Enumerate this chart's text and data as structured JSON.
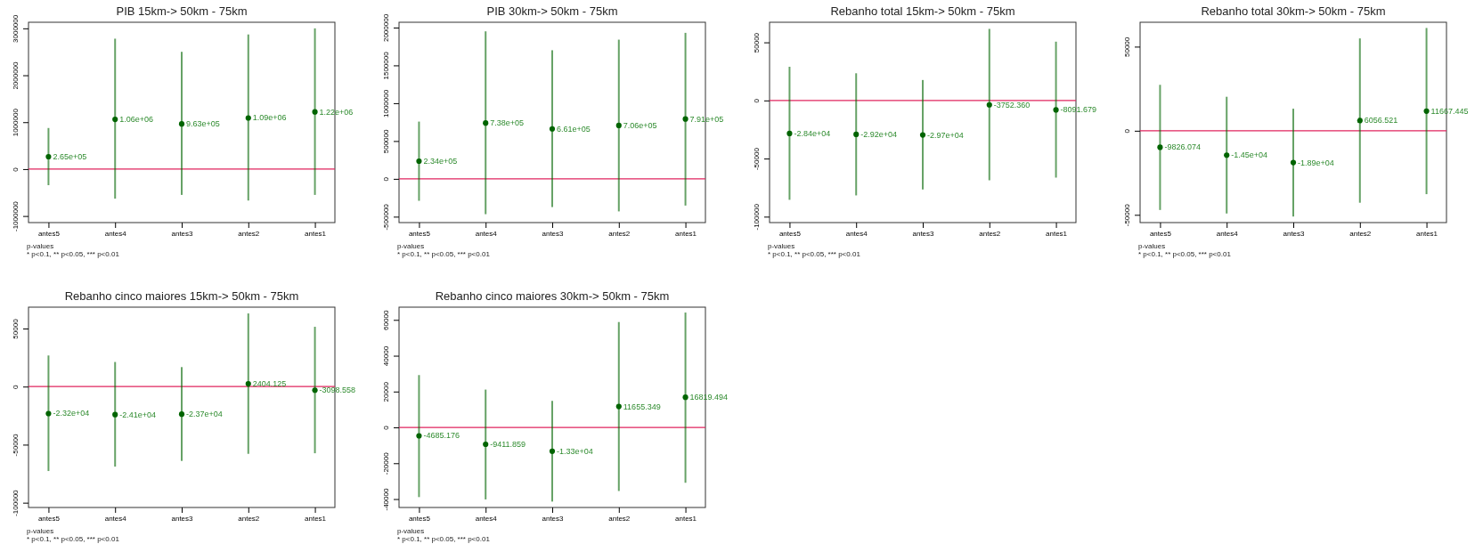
{
  "chart_data": [
    {
      "type": "scatter",
      "title": "PIB 15km-> 50km - 75km",
      "categories": [
        "antes5",
        "antes4",
        "antes3",
        "antes2",
        "antes1"
      ],
      "ylim": [
        -1140000,
        3130000
      ],
      "yticks": [
        -1000000,
        0,
        1000000,
        2000000,
        3000000
      ],
      "marker": "circle",
      "grid": false,
      "series": [
        {
          "color": "#006400",
          "values": [
            265000,
            1060000,
            963000,
            1090000,
            1220000
          ],
          "errors": [
            [
              -343000,
              876000
            ],
            [
              -630000,
              2780000
            ],
            [
              -550000,
              2500000
            ],
            [
              -670000,
              2870000
            ],
            [
              -550000,
              3000000
            ]
          ],
          "value_labels": [
            "2.65e+05",
            "1.06e+06",
            "9.63e+05",
            "1.09e+06",
            "1.22e+06"
          ]
        }
      ],
      "ref_lines": [
        {
          "axis": "y",
          "value": 0,
          "color": "#e0245e"
        }
      ],
      "annotations": [
        "p-values",
        "* p<0.1, ** p<0.05, *** p<0.01"
      ]
    },
    {
      "type": "scatter",
      "title": "PIB 30km-> 50km - 75km",
      "categories": [
        "antes5",
        "antes4",
        "antes3",
        "antes2",
        "antes1"
      ],
      "ylim": [
        -578000,
        2070000
      ],
      "yticks": [
        -500000,
        0,
        500000,
        1000000,
        1500000,
        2000000
      ],
      "marker": "circle",
      "grid": false,
      "series": [
        {
          "color": "#006400",
          "values": [
            234000,
            738000,
            661000,
            706000,
            791000
          ],
          "errors": [
            [
              -290000,
              757000
            ],
            [
              -467000,
              1950000
            ],
            [
              -373000,
              1700000
            ],
            [
              -430000,
              1840000
            ],
            [
              -353000,
              1930000
            ]
          ],
          "value_labels": [
            "2.34e+05",
            "7.38e+05",
            "6.61e+05",
            "7.06e+05",
            "7.91e+05"
          ]
        }
      ],
      "ref_lines": [
        {
          "axis": "y",
          "value": 0,
          "color": "#e0245e"
        }
      ],
      "annotations": [
        "p-values",
        "* p<0.1, ** p<0.05, *** p<0.01"
      ]
    },
    {
      "type": "scatter",
      "title": "Rebanho total 15km-> 50km - 75km",
      "categories": [
        "antes5",
        "antes4",
        "antes3",
        "antes2",
        "antes1"
      ],
      "ylim": [
        -105100,
        67300
      ],
      "yticks": [
        -100000,
        -50000,
        0,
        50000
      ],
      "marker": "circle",
      "grid": false,
      "series": [
        {
          "color": "#006400",
          "values": [
            -28400,
            -29200,
            -29700,
            -3752.36,
            -8091.679
          ],
          "errors": [
            [
              -85500,
              29000
            ],
            [
              -81700,
              23400
            ],
            [
              -76600,
              17600
            ],
            [
              -68700,
              61600
            ],
            [
              -66400,
              50600
            ]
          ],
          "value_labels": [
            "-2.84e+04",
            "-2.92e+04",
            "-2.97e+04",
            "-3752.360",
            "-8091.679"
          ]
        }
      ],
      "ref_lines": [
        {
          "axis": "y",
          "value": 0,
          "color": "#e0245e"
        }
      ],
      "annotations": [
        "p-values",
        "* p<0.1, ** p<0.05, *** p<0.01"
      ]
    },
    {
      "type": "scatter",
      "title": "Rebanho total 30km-> 50km - 75km",
      "categories": [
        "antes5",
        "antes4",
        "antes3",
        "antes2",
        "antes1"
      ],
      "ylim": [
        -54600,
        64500
      ],
      "yticks": [
        -50000,
        0,
        50000
      ],
      "marker": "circle",
      "grid": false,
      "series": [
        {
          "color": "#006400",
          "values": [
            -9826.074,
            -14500,
            -18900,
            6056.521,
            11667.445
          ],
          "errors": [
            [
              -47100,
              27300
            ],
            [
              -49200,
              20200
            ],
            [
              -51000,
              13100
            ],
            [
              -42800,
              54900
            ],
            [
              -37700,
              61100
            ]
          ],
          "value_labels": [
            "-9826.074",
            "-1.45e+04",
            "-1.89e+04",
            "6056.521",
            "11667.445"
          ]
        }
      ],
      "ref_lines": [
        {
          "axis": "y",
          "value": 0,
          "color": "#e0245e"
        }
      ],
      "annotations": [
        "p-values",
        "* p<0.1, ** p<0.05, *** p<0.01"
      ]
    },
    {
      "type": "scatter",
      "title": "Rebanho cinco maiores 15km-> 50km - 75km",
      "categories": [
        "antes5",
        "antes4",
        "antes3",
        "antes2",
        "antes1"
      ],
      "ylim": [
        -104100,
        68400
      ],
      "yticks": [
        -100000,
        -50000,
        0,
        50000
      ],
      "marker": "circle",
      "grid": false,
      "series": [
        {
          "color": "#006400",
          "values": [
            -23200,
            -24100,
            -23700,
            2404.125,
            -3098.558
          ],
          "errors": [
            [
              -72700,
              26800
            ],
            [
              -68900,
              21200
            ],
            [
              -64000,
              16800
            ],
            [
              -57900,
              63000
            ],
            [
              -57400,
              51500
            ]
          ],
          "value_labels": [
            "-2.32e+04",
            "-2.41e+04",
            "-2.37e+04",
            "2404.125",
            "-3098.558"
          ]
        }
      ],
      "ref_lines": [
        {
          "axis": "y",
          "value": 0,
          "color": "#e0245e"
        }
      ],
      "annotations": [
        "p-values",
        "* p<0.1, ** p<0.05, *** p<0.01"
      ]
    },
    {
      "type": "scatter",
      "title": "Rebanho cinco maiores 30km-> 50km - 75km",
      "categories": [
        "antes5",
        "antes4",
        "antes3",
        "antes2",
        "antes1"
      ],
      "ylim": [
        -44700,
        67100
      ],
      "yticks": [
        -40000,
        -20000,
        0,
        20000,
        40000,
        60000
      ],
      "marker": "circle",
      "grid": false,
      "series": [
        {
          "color": "#006400",
          "values": [
            -4685.176,
            -9411.859,
            -13300,
            11655.349,
            16819.494
          ],
          "errors": [
            [
              -38900,
              29200
            ],
            [
              -40200,
              21100
            ],
            [
              -41400,
              14800
            ],
            [
              -35500,
              58800
            ],
            [
              -30900,
              64100
            ]
          ],
          "value_labels": [
            "-4685.176",
            "-9411.859",
            "-1.33e+04",
            "11655.349",
            "16819.494"
          ]
        }
      ],
      "ref_lines": [
        {
          "axis": "y",
          "value": 0,
          "color": "#e0245e"
        }
      ],
      "annotations": [
        "p-values",
        "* p<0.1, ** p<0.05, *** p<0.01"
      ]
    }
  ]
}
